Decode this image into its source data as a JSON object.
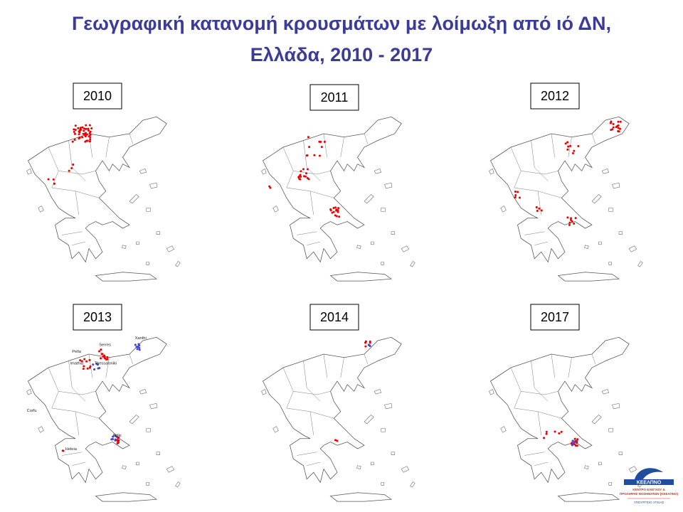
{
  "title": [
    "Γεωγραφική κατανομή κρουσμάτων με λοίμωξη από ιό ΔΝ,",
    "Ελλάδα, 2010 - 2017"
  ],
  "maps": [
    {
      "year": "2010"
    },
    {
      "year": "2011"
    },
    {
      "year": "2012"
    },
    {
      "year": "2013",
      "places": [
        "Serres",
        "Xanthi",
        "Pella",
        "Imathia",
        "Thessaloniki",
        "Corfu",
        "Attiki",
        "Heleia"
      ]
    },
    {
      "year": "2014"
    },
    {
      "year": "2017"
    }
  ],
  "logo": {
    "name": "ΚΕΕΛΠΝΟ",
    "line1": "ΚΕΝΤΡΟ ΕΛΕΓΧΟΥ &",
    "line2": "ΠΡΟΛΗΨΗΣ ΝΟΣΗΜΑΤΩΝ (ΚΕΕΛΠΝΟ)",
    "line3": "ΥΠΟΥΡΓΕΙΟ ΥΓΕΙΑΣ"
  }
}
